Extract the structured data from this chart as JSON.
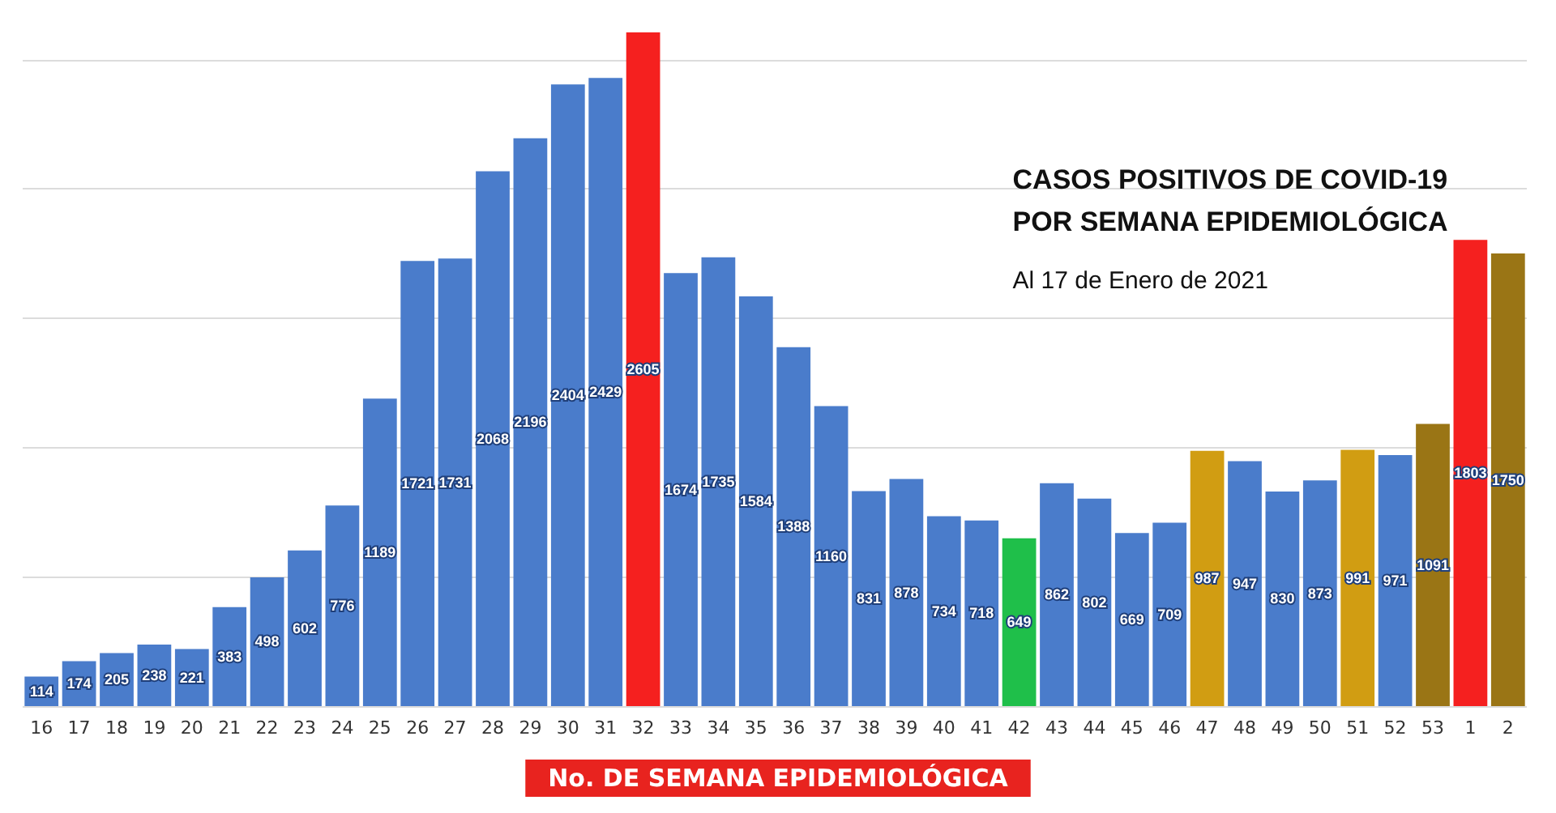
{
  "chart_data": {
    "type": "bar",
    "title": "CASOS POSITIVOS DE COVID-19\nPOR SEMANA EPIDEMIOLÓGICA",
    "subtitle": "Al 17 de Enero de 2021",
    "xlabel": "No. DE SEMANA EPIDEMIOLÓGICA",
    "categories": [
      "16",
      "17",
      "18",
      "19",
      "20",
      "21",
      "22",
      "23",
      "24",
      "25",
      "26",
      "27",
      "28",
      "29",
      "30",
      "31",
      "32",
      "33",
      "34",
      "35",
      "36",
      "37",
      "38",
      "39",
      "40",
      "41",
      "42",
      "43",
      "44",
      "45",
      "46",
      "47",
      "48",
      "49",
      "50",
      "51",
      "52",
      "53",
      "1",
      "2"
    ],
    "values": [
      114,
      174,
      205,
      238,
      221,
      383,
      498,
      602,
      776,
      1189,
      1721,
      1731,
      2068,
      2196,
      2404,
      2429,
      2605,
      1674,
      1735,
      1584,
      1388,
      1160,
      831,
      878,
      734,
      718,
      649,
      862,
      802,
      669,
      709,
      987,
      947,
      830,
      873,
      991,
      971,
      1091,
      1803,
      1750
    ],
    "colors": [
      "#4a7ccb",
      "#4a7ccb",
      "#4a7ccb",
      "#4a7ccb",
      "#4a7ccb",
      "#4a7ccb",
      "#4a7ccb",
      "#4a7ccb",
      "#4a7ccb",
      "#4a7ccb",
      "#4a7ccb",
      "#4a7ccb",
      "#4a7ccb",
      "#4a7ccb",
      "#4a7ccb",
      "#4a7ccb",
      "#f5201f",
      "#4a7ccb",
      "#4a7ccb",
      "#4a7ccb",
      "#4a7ccb",
      "#4a7ccb",
      "#4a7ccb",
      "#4a7ccb",
      "#4a7ccb",
      "#4a7ccb",
      "#1fbf4a",
      "#4a7ccb",
      "#4a7ccb",
      "#4a7ccb",
      "#4a7ccb",
      "#d19d12",
      "#4a7ccb",
      "#4a7ccb",
      "#4a7ccb",
      "#d19d12",
      "#4a7ccb",
      "#9a7515",
      "#f5201f",
      "#9a7515"
    ],
    "ylim": [
      0,
      2605
    ],
    "yticks": [
      {
        "value": 0,
        "label": null
      },
      {
        "value": 500,
        "label": null
      },
      {
        "value": 1000,
        "label": null
      },
      {
        "value": 1500,
        "label": null
      },
      {
        "value": 2000,
        "label": null
      },
      {
        "value": 2500,
        "label": null
      }
    ],
    "tick_labels": "x",
    "grid": "y",
    "data_labels": true
  }
}
